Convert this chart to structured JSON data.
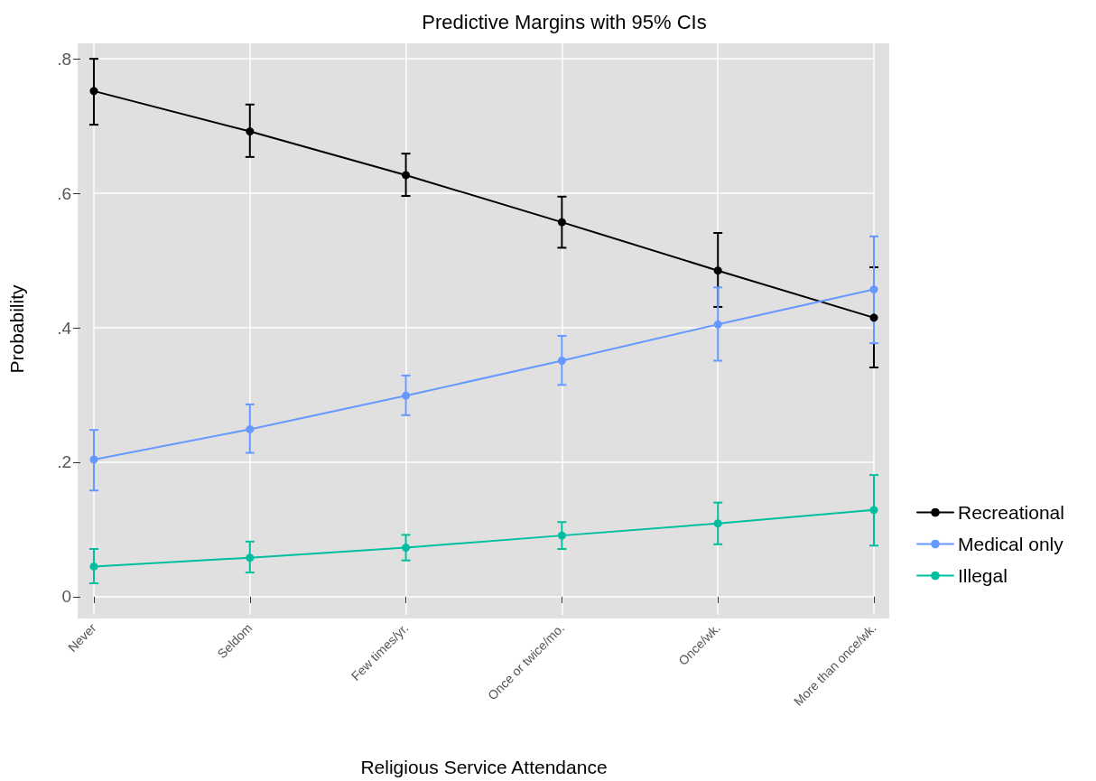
{
  "chart_data": {
    "type": "line",
    "title": "Predictive Margins with 95% CIs",
    "xlabel": "Religious Service Attendance",
    "ylabel": "Probability",
    "categories": [
      "Never",
      "Seldom",
      "Few times/yr.",
      "Once or twice/mo.",
      "Once/wk.",
      "More than once/wk."
    ],
    "series": [
      {
        "name": "Recreational",
        "color": "#000000",
        "values": [
          0.752,
          0.692,
          0.627,
          0.557,
          0.485,
          0.415
        ],
        "errors": [
          [
            0.702,
            0.8
          ],
          [
            0.654,
            0.732
          ],
          [
            0.596,
            0.659
          ],
          [
            0.519,
            0.595
          ],
          [
            0.431,
            0.541
          ],
          [
            0.341,
            0.49
          ]
        ]
      },
      {
        "name": "Medical only",
        "color": "#6699ff",
        "values": [
          0.204,
          0.249,
          0.299,
          0.351,
          0.405,
          0.457
        ],
        "errors": [
          [
            0.158,
            0.248
          ],
          [
            0.214,
            0.286
          ],
          [
            0.27,
            0.329
          ],
          [
            0.315,
            0.388
          ],
          [
            0.351,
            0.46
          ],
          [
            0.377,
            0.536
          ]
        ]
      },
      {
        "name": "Illegal",
        "color": "#00bfa0",
        "values": [
          0.045,
          0.058,
          0.073,
          0.091,
          0.109,
          0.129
        ],
        "errors": [
          [
            0.02,
            0.071
          ],
          [
            0.036,
            0.082
          ],
          [
            0.054,
            0.092
          ],
          [
            0.071,
            0.111
          ],
          [
            0.078,
            0.14
          ],
          [
            0.076,
            0.181
          ]
        ]
      }
    ],
    "ylim": [
      -0.027,
      0.823
    ],
    "yticks": [
      0,
      {
        "value": 0.2,
        "label": ".2"
      },
      {
        "value": 0.4,
        "label": ".4"
      },
      {
        "value": 0.6,
        "label": ".6"
      },
      {
        "value": 0.8,
        "label": ".8"
      }
    ],
    "grid": true,
    "legend": "right",
    "marker": "circle",
    "line_style": "solid"
  }
}
